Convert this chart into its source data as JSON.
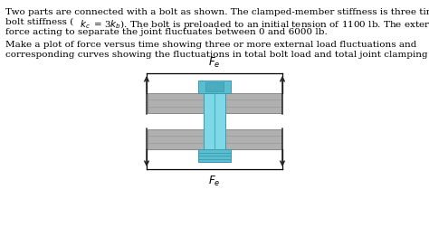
{
  "line1": "Two parts are connected with a bolt as shown. The clamped-member stiffness is three times the",
  "line2": "bolt stiffness (",
  "line2_math1": "k",
  "line2_sub1": "c",
  "line2_mid": " = 3",
  "line2_math2": "k",
  "line2_sub2": "b",
  "line2_end": "). The bolt is preloaded to an initial tension of 1100 lb. The external",
  "line3": "force acting to separate the joint fluctuates between 0 and 6000 lb.",
  "line4": "Make a plot of force versus time showing three or more external load fluctuations and",
  "line5": "corresponding curves showing the fluctuations in total bolt load and total joint clamping force.",
  "bg_color": "#ffffff",
  "text_color": "#000000",
  "plate_color": "#b0b0b0",
  "plate_edge_color": "#888888",
  "bolt_light_color": "#7dd8e8",
  "bolt_mid_color": "#5bbdd0",
  "bolt_dark_color": "#4aacbf",
  "bolt_edge_color": "#3a9ab0",
  "arrow_color": "#222222",
  "fe_label": "$F_e$"
}
